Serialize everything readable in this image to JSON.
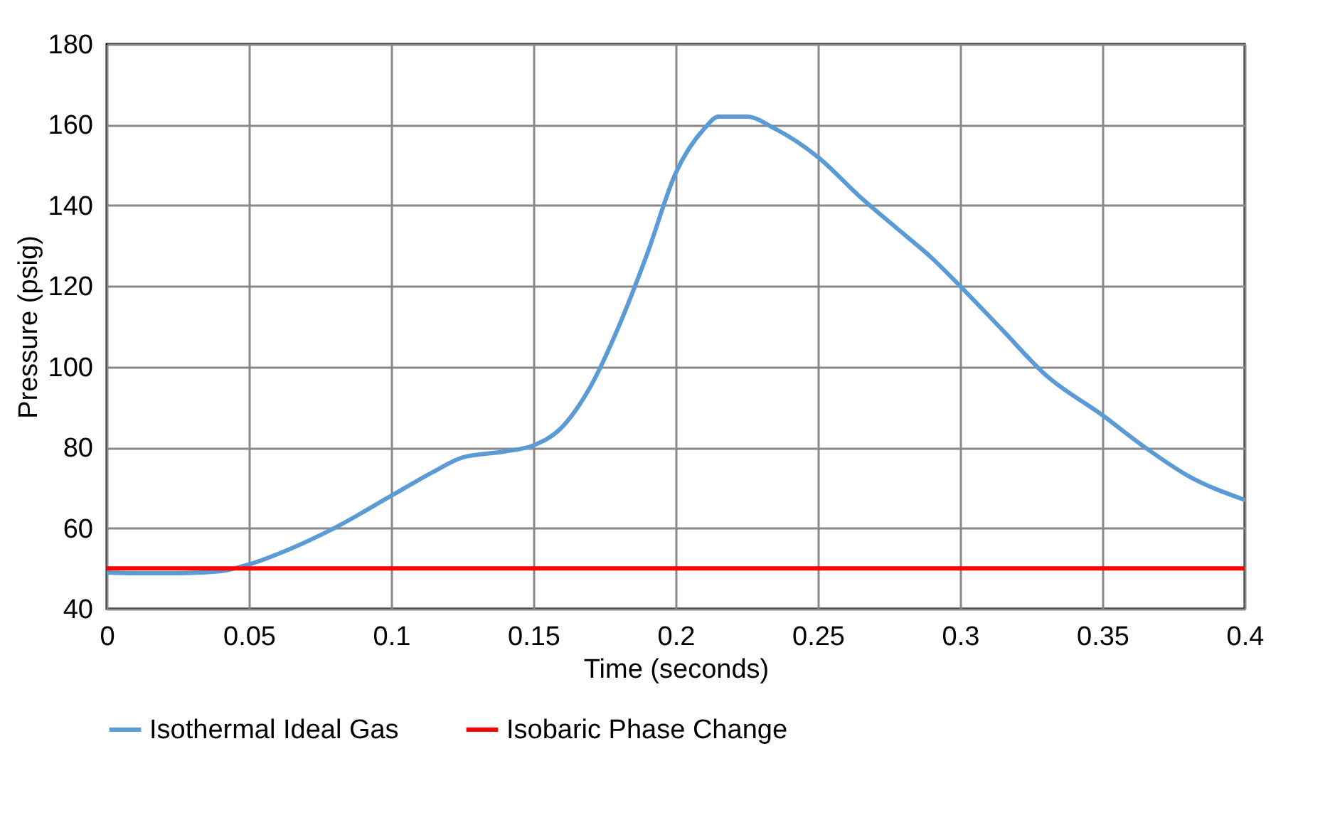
{
  "chart_data": {
    "type": "line",
    "xlabel": "Time (seconds)",
    "ylabel": "Pressure (psig)",
    "xlim": [
      0,
      0.4
    ],
    "xticks": [
      0,
      0.05,
      0.1,
      0.15,
      0.2,
      0.25,
      0.3,
      0.35,
      0.4
    ],
    "ylim": [
      40,
      180
    ],
    "yticks": [
      40,
      60,
      80,
      100,
      120,
      140,
      160,
      180
    ],
    "grid": true,
    "legend": "bottom",
    "marker": "none",
    "line_style": "solid",
    "series": [
      {
        "name": "Isothermal Ideal Gas",
        "color": "#5b9bd5",
        "x": [
          0,
          0.01,
          0.025,
          0.04,
          0.05,
          0.065,
          0.08,
          0.1,
          0.115,
          0.125,
          0.14,
          0.15,
          0.16,
          0.17,
          0.18,
          0.19,
          0.2,
          0.21,
          0.215,
          0.225,
          0.235,
          0.25,
          0.265,
          0.28,
          0.29,
          0.3,
          0.315,
          0.33,
          0.35,
          0.365,
          0.38,
          0.4
        ],
        "values": [
          49,
          48.8,
          48.8,
          49.3,
          51,
          55,
          60,
          68,
          74,
          77.5,
          79,
          80.5,
          85,
          95,
          110,
          128,
          148,
          159,
          162,
          162,
          159,
          152,
          142,
          133,
          127,
          120,
          109,
          98,
          88,
          80,
          73,
          67
        ]
      },
      {
        "name": "Isobaric Phase Change",
        "color": "#ff0000",
        "x": [
          0,
          0.4
        ],
        "values": [
          50,
          50
        ]
      }
    ]
  }
}
